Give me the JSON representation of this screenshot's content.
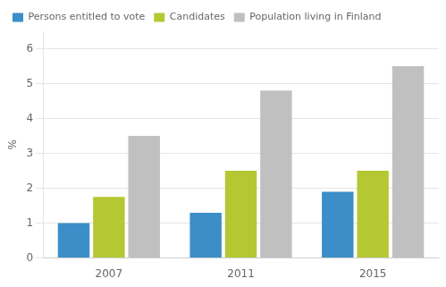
{
  "chart_data": {
    "type": "bar",
    "categories": [
      "2007",
      "2011",
      "2015"
    ],
    "series": [
      {
        "name": "Persons entitled to vote",
        "color": "#3b8ec8",
        "values": [
          1.0,
          1.3,
          1.9
        ]
      },
      {
        "name": "Candidates",
        "color": "#b5c832",
        "values": [
          1.75,
          2.5,
          2.5
        ]
      },
      {
        "name": "Population living in Finland",
        "color": "#c0c0c0",
        "values": [
          3.5,
          4.8,
          5.5
        ]
      }
    ],
    "ylabel": "%",
    "ylim": [
      0,
      6.5
    ],
    "yticks": [
      0,
      1,
      2,
      3,
      4,
      5,
      6
    ],
    "grid": true,
    "legend": "upper left"
  }
}
